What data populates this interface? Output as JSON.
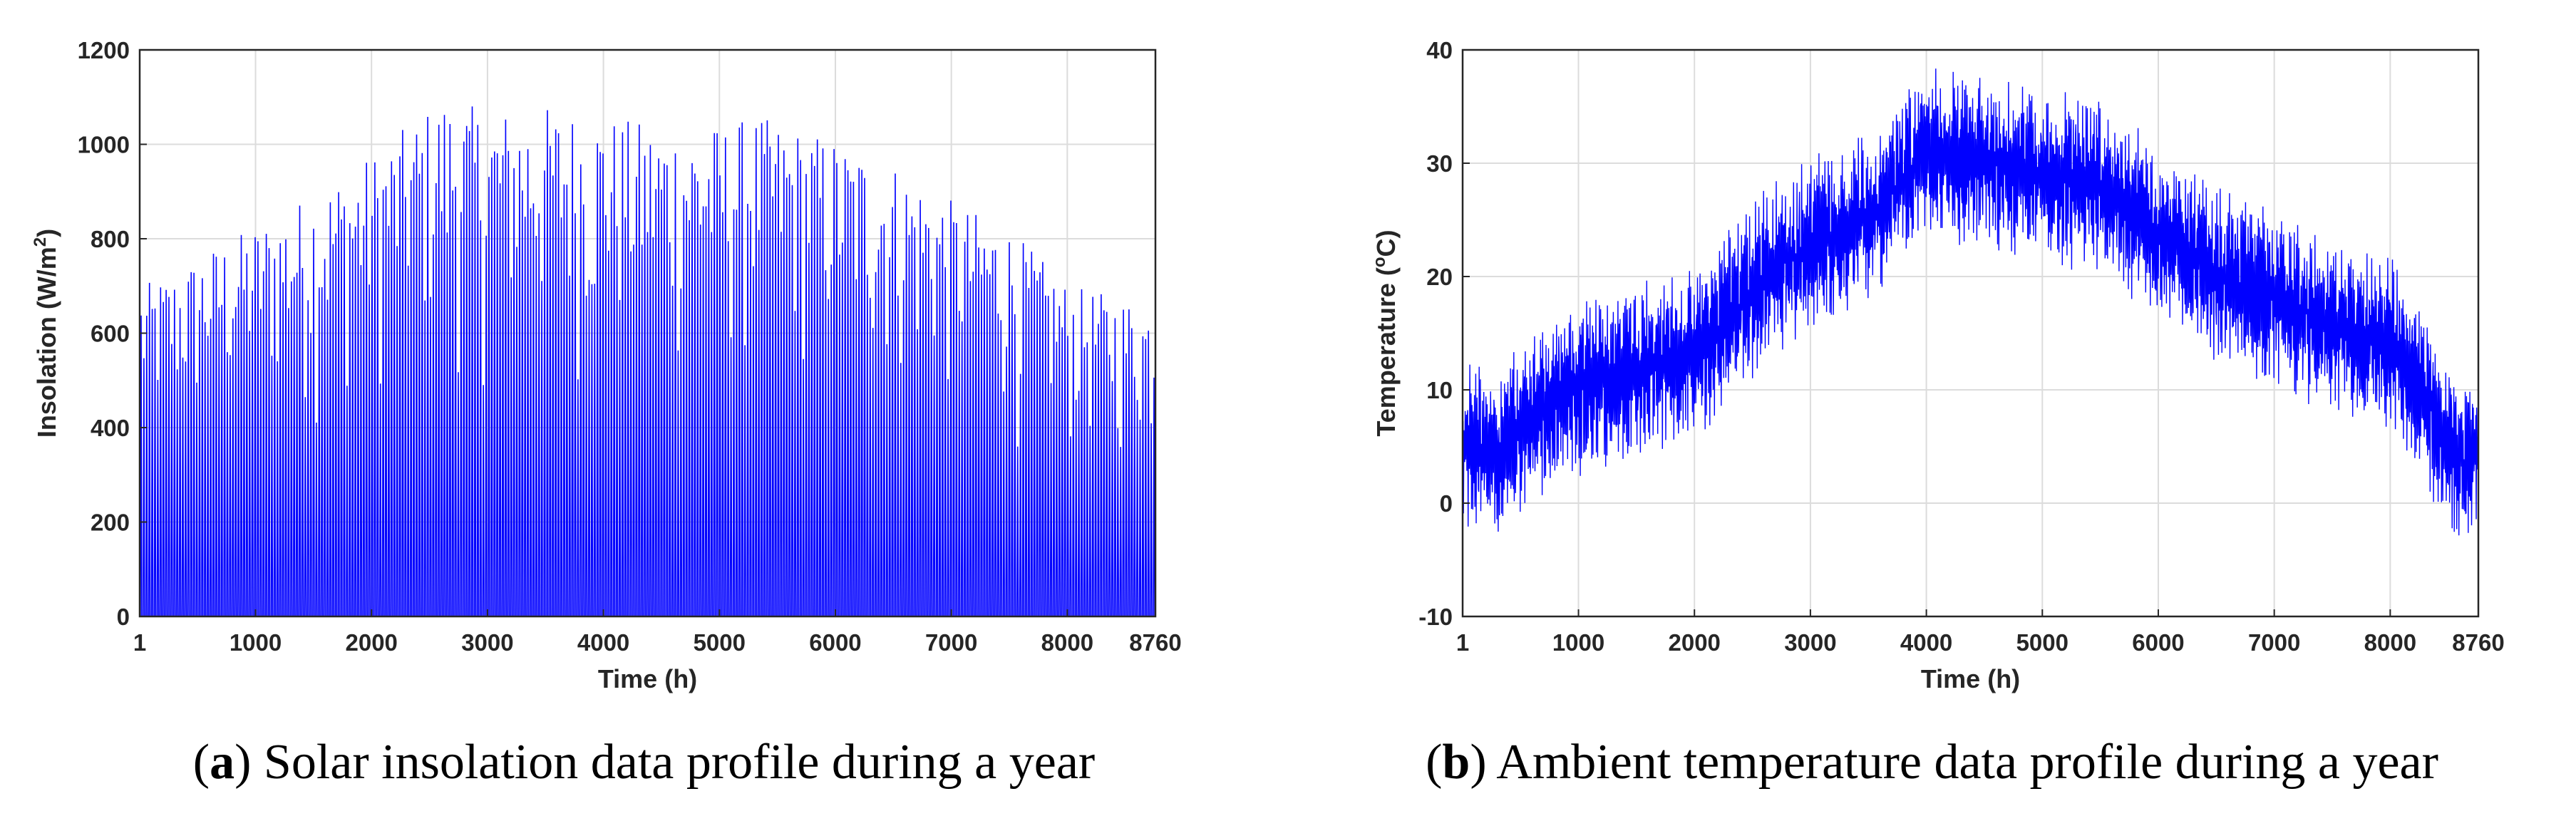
{
  "chart_data": [
    {
      "type": "line",
      "id": "a",
      "xlabel": "Time (h)",
      "ylabel_main": "Insolation (W/m",
      "ylabel_sup": "2",
      "ylabel_end": ")",
      "xlim": [
        1,
        8760
      ],
      "ylim": [
        0,
        1200
      ],
      "xticks": [
        1,
        1000,
        2000,
        3000,
        4000,
        5000,
        6000,
        7000,
        8000,
        8760
      ],
      "yticks": [
        0,
        200,
        400,
        600,
        800,
        1000,
        1200
      ],
      "grid": true,
      "line_color": "#0000ff",
      "envelope": {
        "x": [
          1,
          300,
          600,
          1000,
          1500,
          2000,
          2600,
          3000,
          3500,
          4000,
          4500,
          5000,
          5300,
          6000,
          6500,
          7000,
          7500,
          8000,
          8760
        ],
        "peak": [
          700,
          730,
          780,
          830,
          900,
          980,
          1100,
          1070,
          1080,
          1060,
          1040,
          1040,
          1060,
          1010,
          960,
          880,
          820,
          700,
          660
        ]
      },
      "caption_label": "a",
      "caption_text": " Solar insolation data profile during a year"
    },
    {
      "type": "line",
      "id": "b",
      "xlabel": "Time (h)",
      "ylabel_main": "Temperature (",
      "ylabel_sup": "o",
      "ylabel_end": "C)",
      "xlim": [
        1,
        8760
      ],
      "ylim": [
        -10,
        40
      ],
      "xticks": [
        1,
        1000,
        2000,
        3000,
        4000,
        5000,
        6000,
        7000,
        8000,
        8760
      ],
      "yticks": [
        -10,
        0,
        10,
        20,
        30,
        40
      ],
      "grid": true,
      "line_color": "#0000ff",
      "trend": {
        "x": [
          1,
          300,
          500,
          1000,
          1500,
          2000,
          2500,
          3000,
          3500,
          4000,
          4500,
          5000,
          5500,
          6000,
          6500,
          7000,
          7500,
          8000,
          8300,
          8600,
          8760
        ],
        "mean": [
          6,
          4,
          7,
          10,
          12,
          13,
          19,
          23,
          25,
          31,
          30,
          29,
          28,
          24,
          20,
          18,
          15,
          14,
          9,
          3,
          4
        ],
        "amplitude": [
          5,
          4,
          5,
          5,
          5,
          5,
          5,
          5,
          5,
          5,
          5,
          5,
          5,
          5,
          5,
          5,
          5,
          5,
          5,
          4,
          4
        ]
      },
      "caption_label": "b",
      "caption_text": " Ambient temperature data profile during a year"
    }
  ]
}
